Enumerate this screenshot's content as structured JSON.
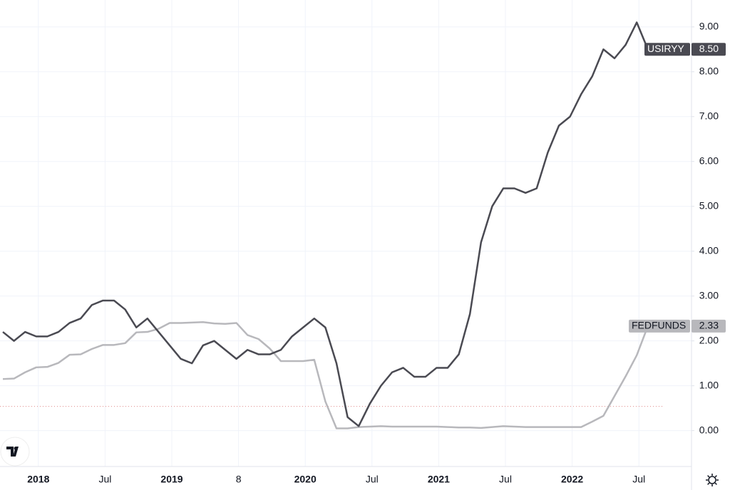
{
  "chart_data": {
    "type": "line",
    "categories": [
      null,
      null,
      null,
      "2018",
      null,
      null,
      null,
      null,
      null,
      "Jul",
      null,
      null,
      null,
      null,
      null,
      "2019",
      null,
      null,
      null,
      null,
      null,
      "8",
      null,
      null,
      null,
      null,
      null,
      "2020",
      null,
      null,
      null,
      null,
      null,
      "Jul",
      null,
      null,
      null,
      null,
      null,
      "2021",
      null,
      null,
      null,
      null,
      null,
      "Jul",
      null,
      null,
      null,
      null,
      null,
      "2022",
      null,
      null,
      null,
      null,
      null,
      "Jul",
      null
    ],
    "series": [
      {
        "name": "USIRYY",
        "color": "#4a4a52",
        "values": [
          2.2,
          2.0,
          2.2,
          2.1,
          2.1,
          2.2,
          2.4,
          2.5,
          2.8,
          2.9,
          2.9,
          2.7,
          2.3,
          2.5,
          2.2,
          1.9,
          1.6,
          1.5,
          1.9,
          2.0,
          1.8,
          1.6,
          1.8,
          1.7,
          1.7,
          1.8,
          2.1,
          2.3,
          2.5,
          2.3,
          1.5,
          0.3,
          0.1,
          0.6,
          1.0,
          1.3,
          1.4,
          1.2,
          1.2,
          1.4,
          1.4,
          1.7,
          2.6,
          4.2,
          5.0,
          5.4,
          5.4,
          5.3,
          5.4,
          6.2,
          6.8,
          7.0,
          7.5,
          7.9,
          8.5,
          8.3,
          8.6,
          9.1,
          8.5
        ],
        "value_labels": [
          null,
          null,
          null,
          null,
          null,
          null,
          null,
          null,
          null,
          null,
          null,
          null,
          null,
          null,
          null,
          null,
          null,
          null,
          null,
          null,
          null,
          null,
          null,
          null,
          null,
          null,
          null,
          null,
          null,
          null,
          null,
          null,
          null,
          null,
          null,
          null,
          null,
          null,
          null,
          null,
          null,
          null,
          null,
          null,
          null,
          null,
          null,
          null,
          null,
          null,
          null,
          null,
          null,
          null,
          null,
          null,
          null,
          null,
          "8.50"
        ]
      },
      {
        "name": "FEDFUNDS",
        "color": "#b8b8bc",
        "values": [
          1.15,
          1.16,
          1.3,
          1.41,
          1.42,
          1.51,
          1.69,
          1.7,
          1.82,
          1.91,
          1.91,
          1.95,
          2.19,
          2.2,
          2.27,
          2.4,
          2.4,
          2.41,
          2.42,
          2.39,
          2.38,
          2.4,
          2.13,
          2.04,
          1.83,
          1.55,
          1.55,
          1.55,
          1.58,
          0.65,
          0.05,
          0.05,
          0.08,
          0.09,
          0.1,
          0.09,
          0.09,
          0.09,
          0.09,
          0.09,
          0.08,
          0.07,
          0.07,
          0.06,
          0.08,
          0.1,
          0.09,
          0.08,
          0.08,
          0.08,
          0.08,
          0.08,
          0.08,
          0.2,
          0.33,
          0.77,
          1.21,
          1.68,
          2.33
        ],
        "value_labels": [
          null,
          null,
          null,
          null,
          null,
          null,
          null,
          null,
          null,
          null,
          null,
          null,
          null,
          null,
          null,
          null,
          null,
          null,
          null,
          null,
          null,
          null,
          null,
          null,
          null,
          null,
          null,
          null,
          null,
          null,
          null,
          null,
          null,
          null,
          null,
          null,
          null,
          null,
          null,
          null,
          null,
          null,
          null,
          null,
          null,
          null,
          null,
          null,
          null,
          null,
          null,
          null,
          null,
          null,
          null,
          null,
          null,
          null,
          "2.33"
        ]
      }
    ],
    "hline": 0.54,
    "ylim": [
      -0.8,
      9.6
    ],
    "yticks": [
      {
        "value": 0,
        "label": "0.00"
      },
      {
        "value": 1,
        "label": "1.00"
      },
      {
        "value": 2,
        "label": "2.00"
      },
      {
        "value": 3,
        "label": "3.00"
      },
      {
        "value": 4,
        "label": "4.00"
      },
      {
        "value": 5,
        "label": "5.00"
      },
      {
        "value": 6,
        "label": "6.00"
      },
      {
        "value": 7,
        "label": "7.00"
      },
      {
        "value": 8,
        "label": "8.00"
      },
      {
        "value": 9,
        "label": "9.00"
      }
    ],
    "grid": true
  }
}
